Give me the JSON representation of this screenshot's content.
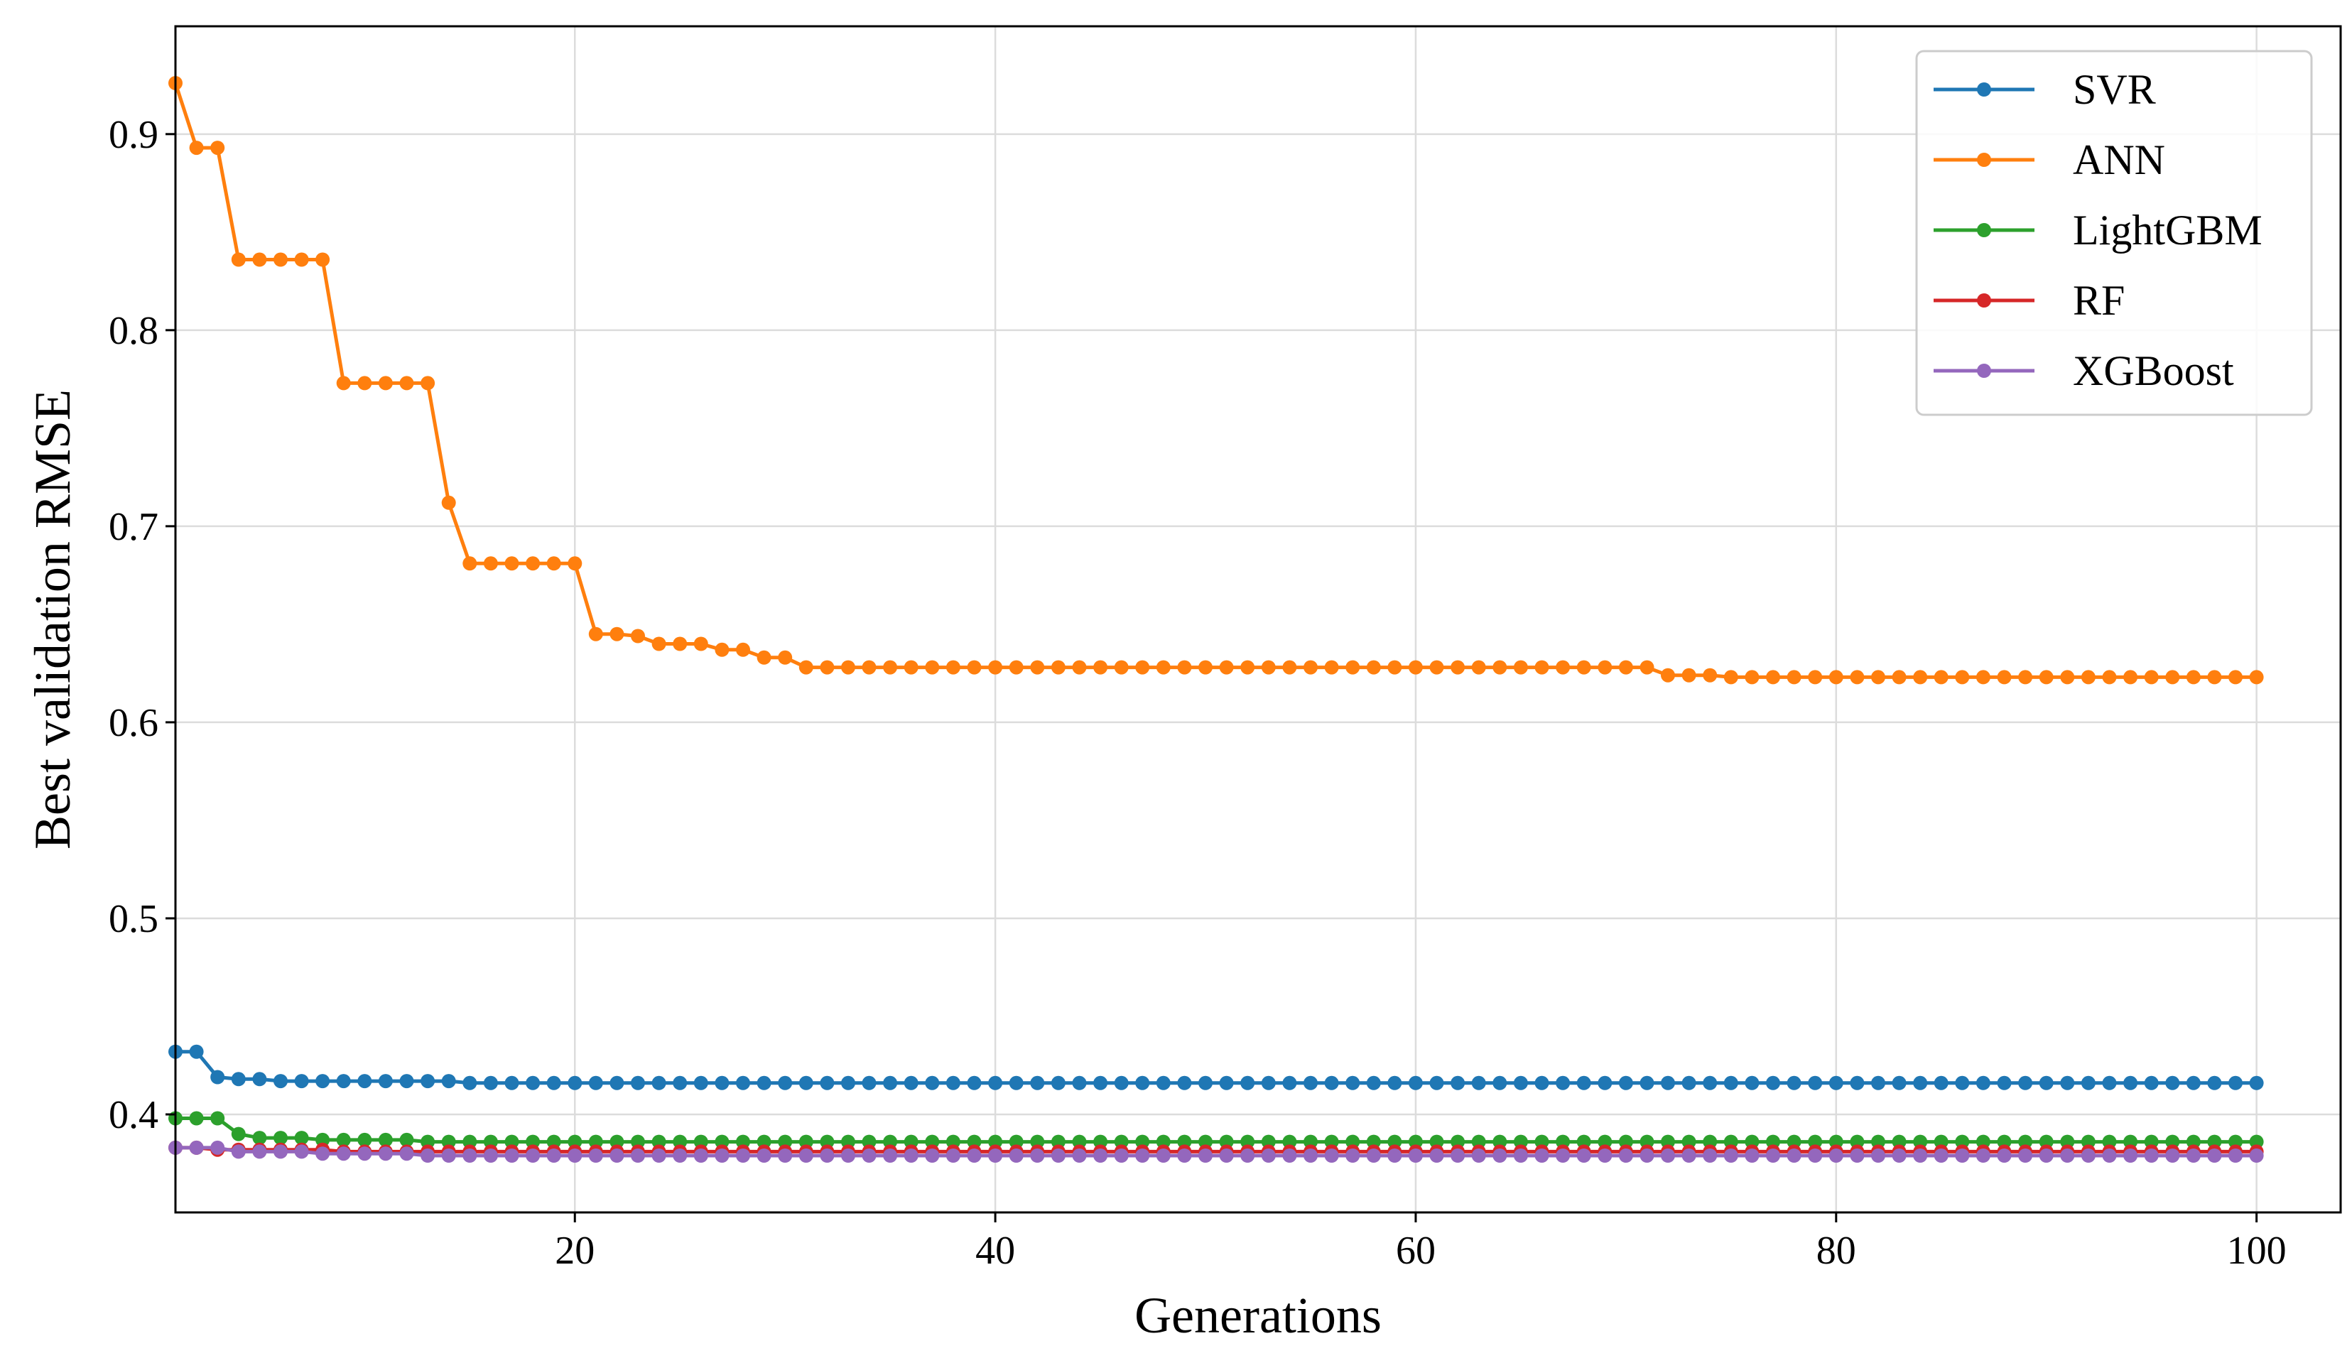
{
  "chart_data": {
    "type": "line",
    "title": "",
    "xlabel": "Generations",
    "ylabel": "Best validation RMSE",
    "xlim": [
      1,
      104
    ],
    "ylim": [
      0.35,
      0.955
    ],
    "xticks": [
      20,
      40,
      60,
      80,
      100
    ],
    "yticks": [
      0.4,
      0.5,
      0.6,
      0.7,
      0.8,
      0.9
    ],
    "xtick_labels": [
      "20",
      "40",
      "60",
      "80",
      "100"
    ],
    "ytick_labels": [
      "0.4",
      "0.5",
      "0.6",
      "0.7",
      "0.8",
      "0.9"
    ],
    "grid": true,
    "legend_position": "top-right",
    "x_start": 1,
    "x_end": 100,
    "series": [
      {
        "name": "SVR",
        "color": "#1f77b4",
        "segments": [
          [
            1,
            2,
            0.432
          ],
          [
            3,
            3,
            0.419
          ],
          [
            4,
            5,
            0.418
          ],
          [
            6,
            14,
            0.417
          ],
          [
            15,
            100,
            0.416
          ]
        ]
      },
      {
        "name": "ANN",
        "color": "#ff7f0e",
        "segments": [
          [
            1,
            1,
            0.926
          ],
          [
            2,
            3,
            0.893
          ],
          [
            4,
            8,
            0.836
          ],
          [
            9,
            13,
            0.773
          ],
          [
            14,
            14,
            0.712
          ],
          [
            15,
            20,
            0.681
          ],
          [
            21,
            22,
            0.645
          ],
          [
            23,
            23,
            0.644
          ],
          [
            24,
            26,
            0.64
          ],
          [
            27,
            28,
            0.637
          ],
          [
            29,
            30,
            0.633
          ],
          [
            31,
            71,
            0.628
          ],
          [
            72,
            74,
            0.624
          ],
          [
            75,
            100,
            0.623
          ]
        ]
      },
      {
        "name": "LightGBM",
        "color": "#2ca02c",
        "segments": [
          [
            1,
            3,
            0.398
          ],
          [
            4,
            4,
            0.39
          ],
          [
            5,
            7,
            0.388
          ],
          [
            8,
            12,
            0.387
          ],
          [
            13,
            100,
            0.386
          ]
        ]
      },
      {
        "name": "RF",
        "color": "#d62728",
        "segments": [
          [
            1,
            2,
            0.383
          ],
          [
            3,
            8,
            0.382
          ],
          [
            9,
            100,
            0.381
          ]
        ]
      },
      {
        "name": "XGBoost",
        "color": "#9467bd",
        "segments": [
          [
            1,
            3,
            0.383
          ],
          [
            4,
            7,
            0.381
          ],
          [
            8,
            12,
            0.38
          ],
          [
            13,
            100,
            0.379
          ]
        ]
      }
    ]
  }
}
